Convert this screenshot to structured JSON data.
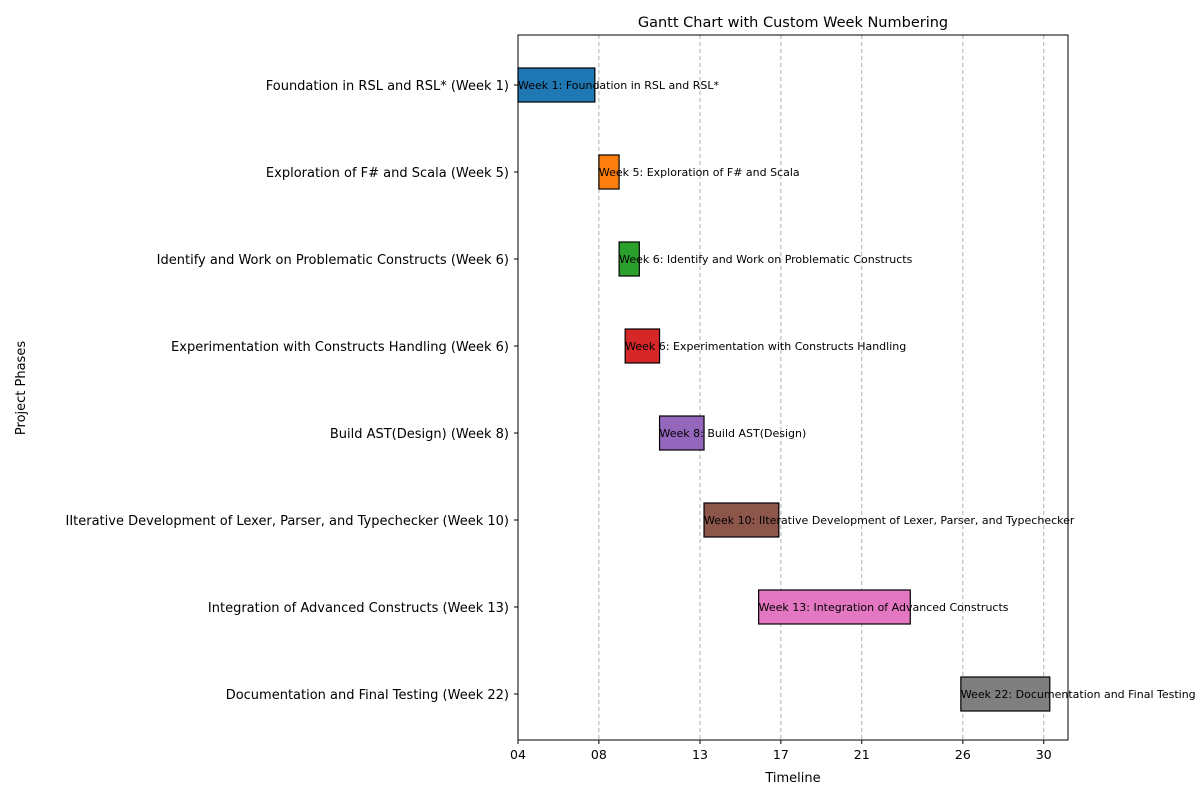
{
  "chart_data": {
    "type": "bar",
    "orientation": "horizontal",
    "title": "Gantt Chart with Custom Week Numbering",
    "xlabel": "Timeline",
    "ylabel": "Project Phases",
    "x_ticks": [
      4,
      8,
      13,
      17,
      21,
      26,
      30
    ],
    "x_tick_labels": [
      "04",
      "08",
      "13",
      "17",
      "21",
      "26",
      "30"
    ],
    "xlim": [
      4,
      31.2
    ],
    "grid": "x dashed",
    "tasks": [
      {
        "label": "Foundation in RSL and RSL* (Week 1)",
        "bar_text": "Week 1: Foundation in RSL and RSL*",
        "start": 4.0,
        "end": 7.8,
        "color": "#1f77b4"
      },
      {
        "label": "Exploration of F# and Scala (Week 5)",
        "bar_text": "Week 5: Exploration of F# and Scala",
        "start": 8.0,
        "end": 9.0,
        "color": "#ff7f0e"
      },
      {
        "label": "Identify and Work on Problematic Constructs  (Week 6)",
        "bar_text": "Week 6: Identify and Work on Problematic Constructs",
        "start": 9.0,
        "end": 10.0,
        "color": "#2ca02c"
      },
      {
        "label": "Experimentation with Constructs Handling (Week 6)",
        "bar_text": "Week 6: Experimentation with Constructs Handling",
        "start": 9.3,
        "end": 11.0,
        "color": "#d62728"
      },
      {
        "label": "Build AST(Design) (Week 8)",
        "bar_text": "Week 8: Build AST(Design)",
        "start": 11.0,
        "end": 13.2,
        "color": "#9467bd"
      },
      {
        "label": "IIterative Development of Lexer, Parser, and Typechecker (Week 10)",
        "bar_text": "Week 10: IIterative Development of Lexer, Parser, and Typechecker",
        "start": 13.2,
        "end": 16.9,
        "color": "#8c564b"
      },
      {
        "label": "Integration of Advanced Constructs (Week 13)",
        "bar_text": "Week 13: Integration of Advanced Constructs",
        "start": 15.9,
        "end": 23.4,
        "color": "#e377c2"
      },
      {
        "label": "Documentation and Final Testing (Week 22)",
        "bar_text": "Week 22: Documentation and Final Testing",
        "start": 25.9,
        "end": 30.3,
        "color": "#7f7f7f"
      }
    ]
  }
}
